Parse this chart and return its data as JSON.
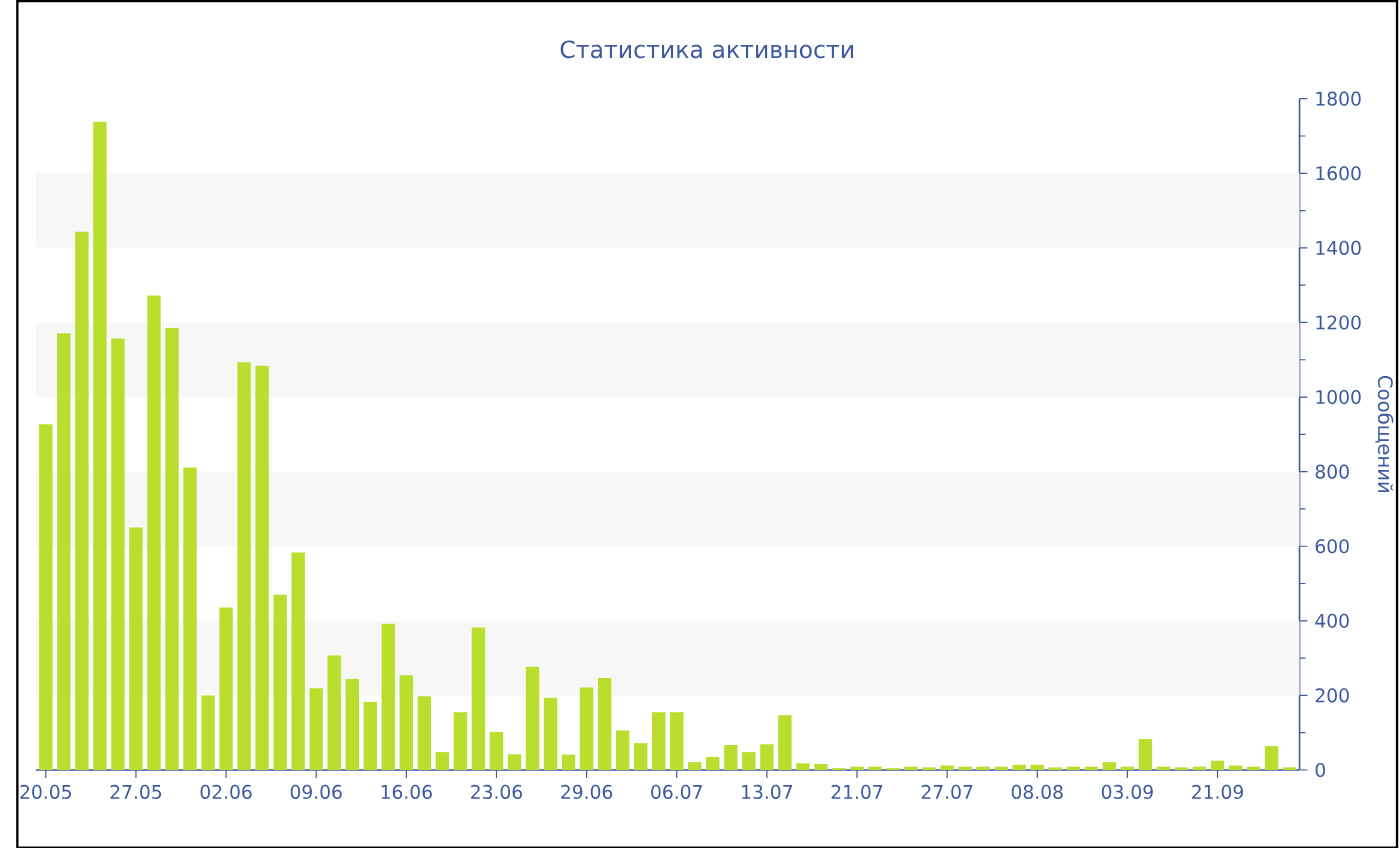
{
  "chart_data": {
    "type": "bar",
    "title": "Статистика активности",
    "ylabel": "Сообщений",
    "categories": [
      "20.05",
      null,
      null,
      null,
      null,
      "27.05",
      null,
      null,
      null,
      null,
      "02.06",
      null,
      null,
      null,
      null,
      "09.06",
      null,
      null,
      null,
      null,
      "16.06",
      null,
      null,
      null,
      null,
      "23.06",
      null,
      null,
      null,
      null,
      "29.06",
      null,
      null,
      null,
      null,
      "06.07",
      null,
      null,
      null,
      null,
      "13.07",
      null,
      null,
      null,
      null,
      "21.07",
      null,
      null,
      null,
      null,
      "27.07",
      null,
      null,
      null,
      null,
      "08.08",
      null,
      null,
      null,
      null,
      "03.09",
      null,
      null,
      null,
      null,
      "21.09",
      null,
      null,
      null,
      null
    ],
    "values": [
      927,
      1171,
      1443,
      1738,
      1157,
      650,
      1272,
      1185,
      811,
      200,
      436,
      1093,
      1084,
      470,
      583,
      219,
      307,
      244,
      182,
      392,
      254,
      198,
      48,
      155,
      382,
      102,
      42,
      277,
      194,
      41,
      221,
      247,
      106,
      72,
      155,
      155,
      21,
      35,
      67,
      48,
      69,
      147,
      18,
      16,
      5,
      9,
      9,
      5,
      9,
      7,
      12,
      9,
      9,
      9,
      14,
      14,
      7,
      9,
      9,
      21,
      9,
      83,
      9,
      7,
      9,
      25,
      12,
      9,
      64,
      7
    ],
    "color": "#bade2e",
    "ylim": [
      0,
      1800
    ],
    "yticks": [
      0,
      200,
      400,
      600,
      800,
      1000,
      1200,
      1400,
      1600,
      1800
    ],
    "bands": [
      {
        "axis": "y",
        "from": 200,
        "to": 400,
        "color": "#f7f7f7"
      },
      {
        "axis": "y",
        "from": 600,
        "to": 800,
        "color": "#f7f7f7"
      },
      {
        "axis": "y",
        "from": 1000,
        "to": 1200,
        "color": "#f7f7f7"
      },
      {
        "axis": "y",
        "from": 1400,
        "to": 1600,
        "color": "#f7f7f7"
      }
    ]
  }
}
